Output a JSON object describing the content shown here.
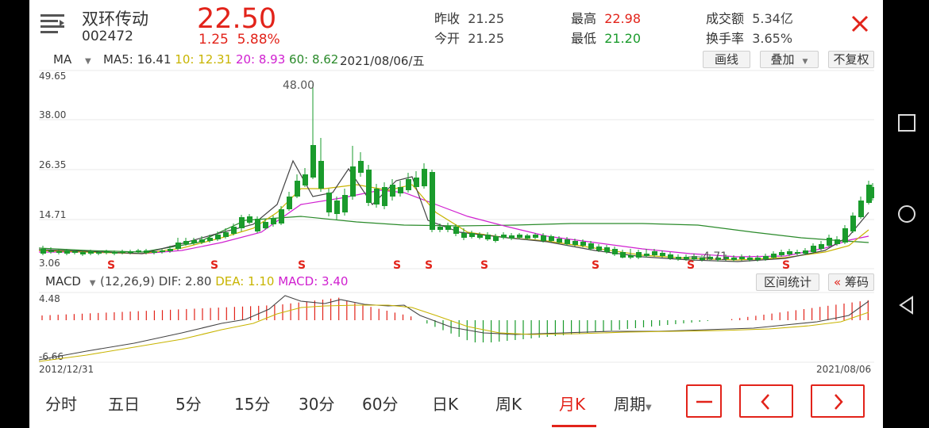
{
  "stock": {
    "name": "双环传动",
    "code": "002472",
    "price": "22.50",
    "change": "1.25",
    "change_pct": "5.88%"
  },
  "quote": {
    "prev_close_label": "昨收",
    "prev_close": "21.25",
    "open_label": "今开",
    "open": "21.25",
    "high_label": "最高",
    "high": "22.98",
    "low_label": "最低",
    "low": "21.20",
    "turnover_label": "成交额",
    "turnover": "5.34亿",
    "turnover_rate_label": "换手率",
    "turnover_rate": "3.65%"
  },
  "ma_bar": {
    "indicator": "MA",
    "ma5": "MA5: 16.41",
    "ma10": "10: 12.31",
    "ma20": "20: 8.93",
    "ma60": "60: 8.62",
    "date": "2021/08/06/五"
  },
  "toolbar": {
    "draw": "画线",
    "overlay": "叠加",
    "no_adjust": "不复权"
  },
  "price_axis": {
    "top": "49.65",
    "t2": "38.00",
    "t3": "26.35",
    "t4": "14.71",
    "bottom": "3.06",
    "peak_label": "48.00",
    "low_label": "4.71",
    "signal": "S"
  },
  "macd_bar": {
    "indicator": "MACD",
    "params": "(12,26,9)",
    "dif": "DIF: 2.80",
    "dea": "DEA: 1.10",
    "macd": "MACD: 3.40",
    "range_stats": "区间统计",
    "chips": "筹码"
  },
  "macd_axis": {
    "top": "4.48",
    "bottom": "-6.66"
  },
  "date_axis": {
    "start": "2012/12/31",
    "end": "2021/08/06"
  },
  "tabs": [
    "分时",
    "五日",
    "5分",
    "15分",
    "30分",
    "60分",
    "日K",
    "周K",
    "月K",
    "周期"
  ],
  "colors": {
    "up": "#e2231a",
    "down": "#1a9b2c",
    "ma5": "#333333",
    "ma10": "#c8b400",
    "ma20": "#d020d0",
    "ma60": "#2a8a2a"
  }
}
